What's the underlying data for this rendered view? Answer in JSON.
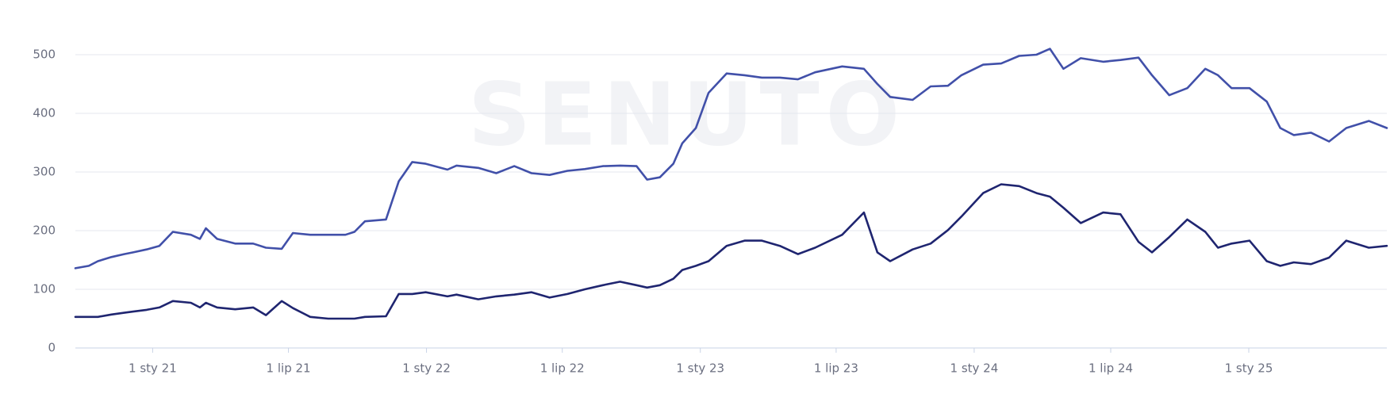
{
  "chart_data": {
    "type": "line",
    "watermark": "SENUTO",
    "x": [
      "2020-09-20",
      "2020-10-08",
      "2020-10-20",
      "2020-11-07",
      "2020-11-24",
      "2020-12-06",
      "2020-12-24",
      "2021-01-10",
      "2021-01-28",
      "2021-02-21",
      "2021-03-05",
      "2021-03-13",
      "2021-03-28",
      "2021-04-21",
      "2021-05-15",
      "2021-06-01",
      "2021-06-22",
      "2021-07-07",
      "2021-07-30",
      "2021-08-23",
      "2021-09-15",
      "2021-09-27",
      "2021-10-11",
      "2021-11-08",
      "2021-11-25",
      "2021-12-13",
      "2021-12-31",
      "2022-01-29",
      "2022-02-10",
      "2022-03-11",
      "2022-04-04",
      "2022-04-28",
      "2022-05-21",
      "2022-06-14",
      "2022-07-08",
      "2022-07-31",
      "2022-08-24",
      "2022-09-16",
      "2022-10-08",
      "2022-10-22",
      "2022-11-08",
      "2022-11-26",
      "2022-12-08",
      "2022-12-26",
      "2023-01-12",
      "2023-02-05",
      "2023-03-01",
      "2023-03-24",
      "2023-04-17",
      "2023-05-11",
      "2023-06-03",
      "2023-07-09",
      "2023-08-07",
      "2023-08-25",
      "2023-09-11",
      "2023-10-11",
      "2023-11-04",
      "2023-11-27",
      "2023-12-15",
      "2024-01-13",
      "2024-02-06",
      "2024-03-01",
      "2024-03-24",
      "2024-04-11",
      "2024-04-29",
      "2024-05-22",
      "2024-06-21",
      "2024-07-14",
      "2024-08-07",
      "2024-08-25",
      "2024-09-17",
      "2024-10-11",
      "2024-11-04",
      "2024-11-21",
      "2024-12-09",
      "2025-01-02",
      "2025-01-25",
      "2025-02-12",
      "2025-03-02",
      "2025-03-25",
      "2025-04-18",
      "2025-05-11",
      "2025-06-10",
      "2025-07-04"
    ],
    "series": [
      {
        "color": "#4150a9",
        "values": [
          136,
          140,
          148,
          155,
          160,
          163,
          168,
          174,
          198,
          193,
          186,
          204,
          186,
          178,
          178,
          171,
          169,
          196,
          193,
          193,
          193,
          198,
          216,
          219,
          284,
          317,
          314,
          304,
          311,
          307,
          298,
          310,
          298,
          295,
          302,
          305,
          310,
          311,
          310,
          287,
          291,
          314,
          349,
          375,
          435,
          468,
          465,
          461,
          461,
          458,
          470,
          480,
          476,
          450,
          428,
          423,
          446,
          447,
          465,
          483,
          485,
          498,
          500,
          510,
          476,
          494,
          488,
          491,
          495,
          465,
          431,
          443,
          476,
          465,
          443,
          443,
          420,
          375,
          363,
          367,
          352,
          375,
          387,
          375
        ]
      },
      {
        "color": "#1f2570",
        "values": [
          53,
          53,
          53,
          57,
          60,
          62,
          65,
          69,
          80,
          77,
          69,
          77,
          69,
          66,
          69,
          56,
          80,
          68,
          53,
          50,
          50,
          50,
          53,
          54,
          92,
          92,
          95,
          88,
          91,
          83,
          88,
          91,
          95,
          86,
          92,
          100,
          107,
          113,
          107,
          103,
          107,
          118,
          133,
          140,
          148,
          174,
          183,
          183,
          174,
          160,
          171,
          193,
          231,
          163,
          148,
          168,
          178,
          201,
          224,
          264,
          279,
          276,
          264,
          258,
          239,
          213,
          231,
          228,
          181,
          163,
          189,
          219,
          198,
          171,
          178,
          183,
          148,
          140,
          146,
          143,
          154,
          183,
          171,
          174
        ]
      }
    ],
    "xlim": [
      "2020-09-20",
      "2025-07-04"
    ],
    "xticks": [
      {
        "value": "2021-01-01",
        "label": "1 sty 21"
      },
      {
        "value": "2021-07-01",
        "label": "1 lip 21"
      },
      {
        "value": "2022-01-01",
        "label": "1 sty 22"
      },
      {
        "value": "2022-07-01",
        "label": "1 lip 22"
      },
      {
        "value": "2023-01-01",
        "label": "1 sty 23"
      },
      {
        "value": "2023-07-01",
        "label": "1 lip 23"
      },
      {
        "value": "2024-01-01",
        "label": "1 sty 24"
      },
      {
        "value": "2024-07-01",
        "label": "1 lip 24"
      },
      {
        "value": "2025-01-01",
        "label": "1 sty 25"
      }
    ],
    "ylim": [
      0,
      500
    ],
    "yticks": [
      0,
      100,
      200,
      300,
      400,
      500
    ],
    "grid": true
  }
}
